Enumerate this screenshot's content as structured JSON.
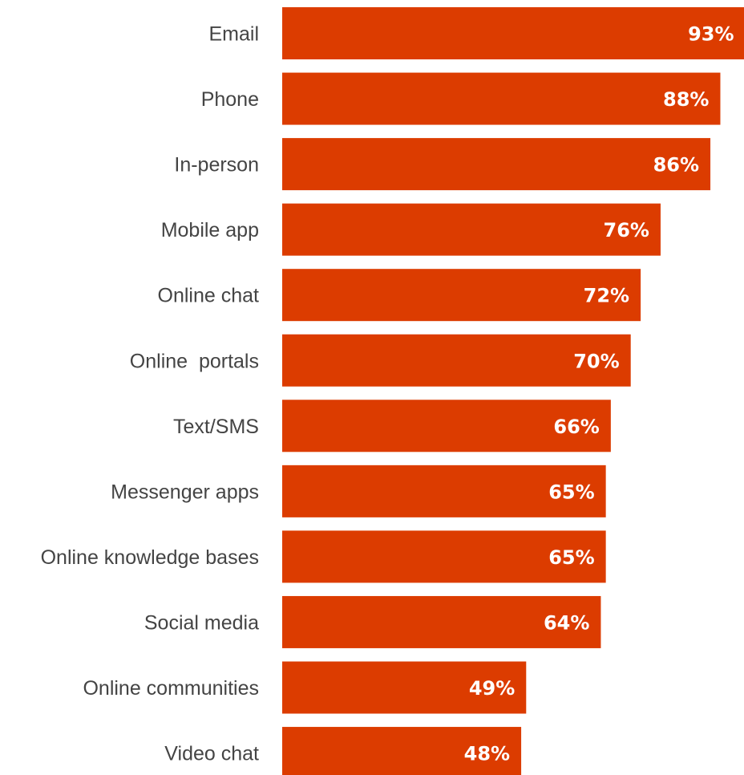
{
  "chart_data": {
    "type": "bar",
    "orientation": "horizontal",
    "categories": [
      "Email",
      "Phone",
      "In-person",
      "Mobile app",
      "Online chat",
      "Online  portals",
      "Text/SMS",
      "Messenger apps",
      "Online knowledge bases",
      "Social media",
      "Online communities",
      "Video chat"
    ],
    "values": [
      93,
      88,
      86,
      76,
      72,
      70,
      66,
      65,
      65,
      64,
      49,
      48
    ],
    "value_labels": [
      "93%",
      "88%",
      "86%",
      "76%",
      "72%",
      "70%",
      "66%",
      "65%",
      "65%",
      "64%",
      "49%",
      "48%"
    ],
    "unit": "%",
    "xlim": [
      0,
      100
    ],
    "grid": false,
    "legend": "none",
    "title": "",
    "xlabel": "",
    "ylabel": ""
  },
  "colors": {
    "bar": "#dc3c00",
    "label_text": "#444444",
    "value_text": "#ffffff",
    "background": "#ffffff"
  }
}
